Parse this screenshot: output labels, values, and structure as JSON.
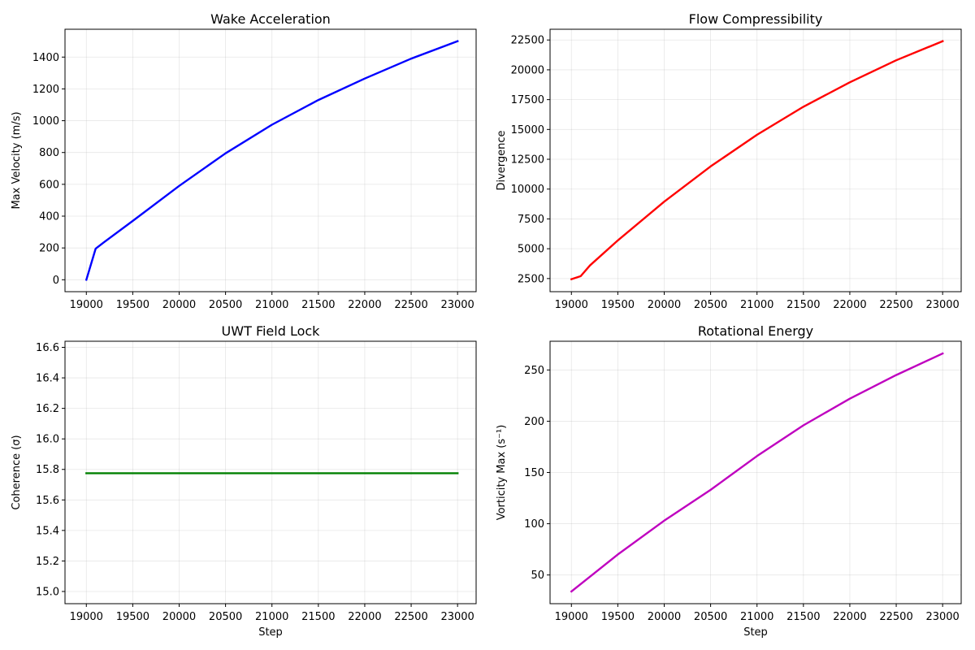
{
  "chart_data": [
    {
      "type": "line",
      "title": "Wake Acceleration",
      "xlabel": "",
      "ylabel": "Max Velocity (m/s)",
      "xlim": [
        18770,
        23200
      ],
      "ylim": [
        -75,
        1575
      ],
      "xticks": [
        19000,
        19500,
        20000,
        20500,
        21000,
        21500,
        22000,
        22500,
        23000
      ],
      "yticks": [
        0,
        200,
        400,
        600,
        800,
        1000,
        1200,
        1400
      ],
      "ytick_labels": [
        "0",
        "200",
        "400",
        "600",
        "800",
        "1000",
        "1200",
        "1400"
      ],
      "grid": true,
      "color": "#0000ff",
      "x": [
        19000,
        19100,
        19200,
        19500,
        20000,
        20500,
        21000,
        21500,
        22000,
        22500,
        23000
      ],
      "y": [
        0,
        195,
        240,
        370,
        590,
        795,
        975,
        1130,
        1265,
        1390,
        1500
      ]
    },
    {
      "type": "line",
      "title": "Flow Compressibility",
      "xlabel": "",
      "ylabel": "Divergence",
      "xlim": [
        18770,
        23200
      ],
      "ylim": [
        1400,
        23400
      ],
      "xticks": [
        19000,
        19500,
        20000,
        20500,
        21000,
        21500,
        22000,
        22500,
        23000
      ],
      "yticks": [
        2500,
        5000,
        7500,
        10000,
        12500,
        15000,
        17500,
        20000,
        22500
      ],
      "ytick_labels": [
        "2500",
        "5000",
        "7500",
        "10000",
        "12500",
        "15000",
        "17500",
        "20000",
        "22500"
      ],
      "grid": true,
      "color": "#ff0000",
      "x": [
        19000,
        19100,
        19200,
        19500,
        20000,
        20500,
        21000,
        21500,
        22000,
        22500,
        23000
      ],
      "y": [
        2450,
        2700,
        3600,
        5700,
        8950,
        11900,
        14550,
        16900,
        18950,
        20800,
        22400
      ]
    },
    {
      "type": "line",
      "title": "UWT Field Lock",
      "xlabel": "Step",
      "ylabel": "Coherence (σ)",
      "xlim": [
        18770,
        23200
      ],
      "ylim": [
        14.92,
        16.64
      ],
      "xticks": [
        19000,
        19500,
        20000,
        20500,
        21000,
        21500,
        22000,
        22500,
        23000
      ],
      "yticks": [
        15.0,
        15.2,
        15.4,
        15.6,
        15.8,
        16.0,
        16.2,
        16.4,
        16.6
      ],
      "ytick_labels": [
        "15.0",
        "15.2",
        "15.4",
        "15.6",
        "15.8",
        "16.0",
        "16.2",
        "16.4",
        "16.6"
      ],
      "grid": true,
      "color": "#008000",
      "x": [
        19000,
        23000
      ],
      "y": [
        15.775,
        15.775
      ]
    },
    {
      "type": "line",
      "title": "Rotational Energy",
      "xlabel": "Step",
      "ylabel": "Vorticity Max (s⁻¹)",
      "xlim": [
        18770,
        23200
      ],
      "ylim": [
        22,
        278
      ],
      "xticks": [
        19000,
        19500,
        20000,
        20500,
        21000,
        21500,
        22000,
        22500,
        23000
      ],
      "yticks": [
        50,
        100,
        150,
        200,
        250
      ],
      "ytick_labels": [
        "50",
        "100",
        "150",
        "200",
        "250"
      ],
      "grid": true,
      "color": "#bf00bf",
      "x": [
        19000,
        19500,
        20000,
        20500,
        21000,
        21500,
        22000,
        22500,
        23000
      ],
      "y": [
        34,
        70,
        103,
        133,
        166,
        196,
        222,
        245,
        266
      ]
    }
  ]
}
